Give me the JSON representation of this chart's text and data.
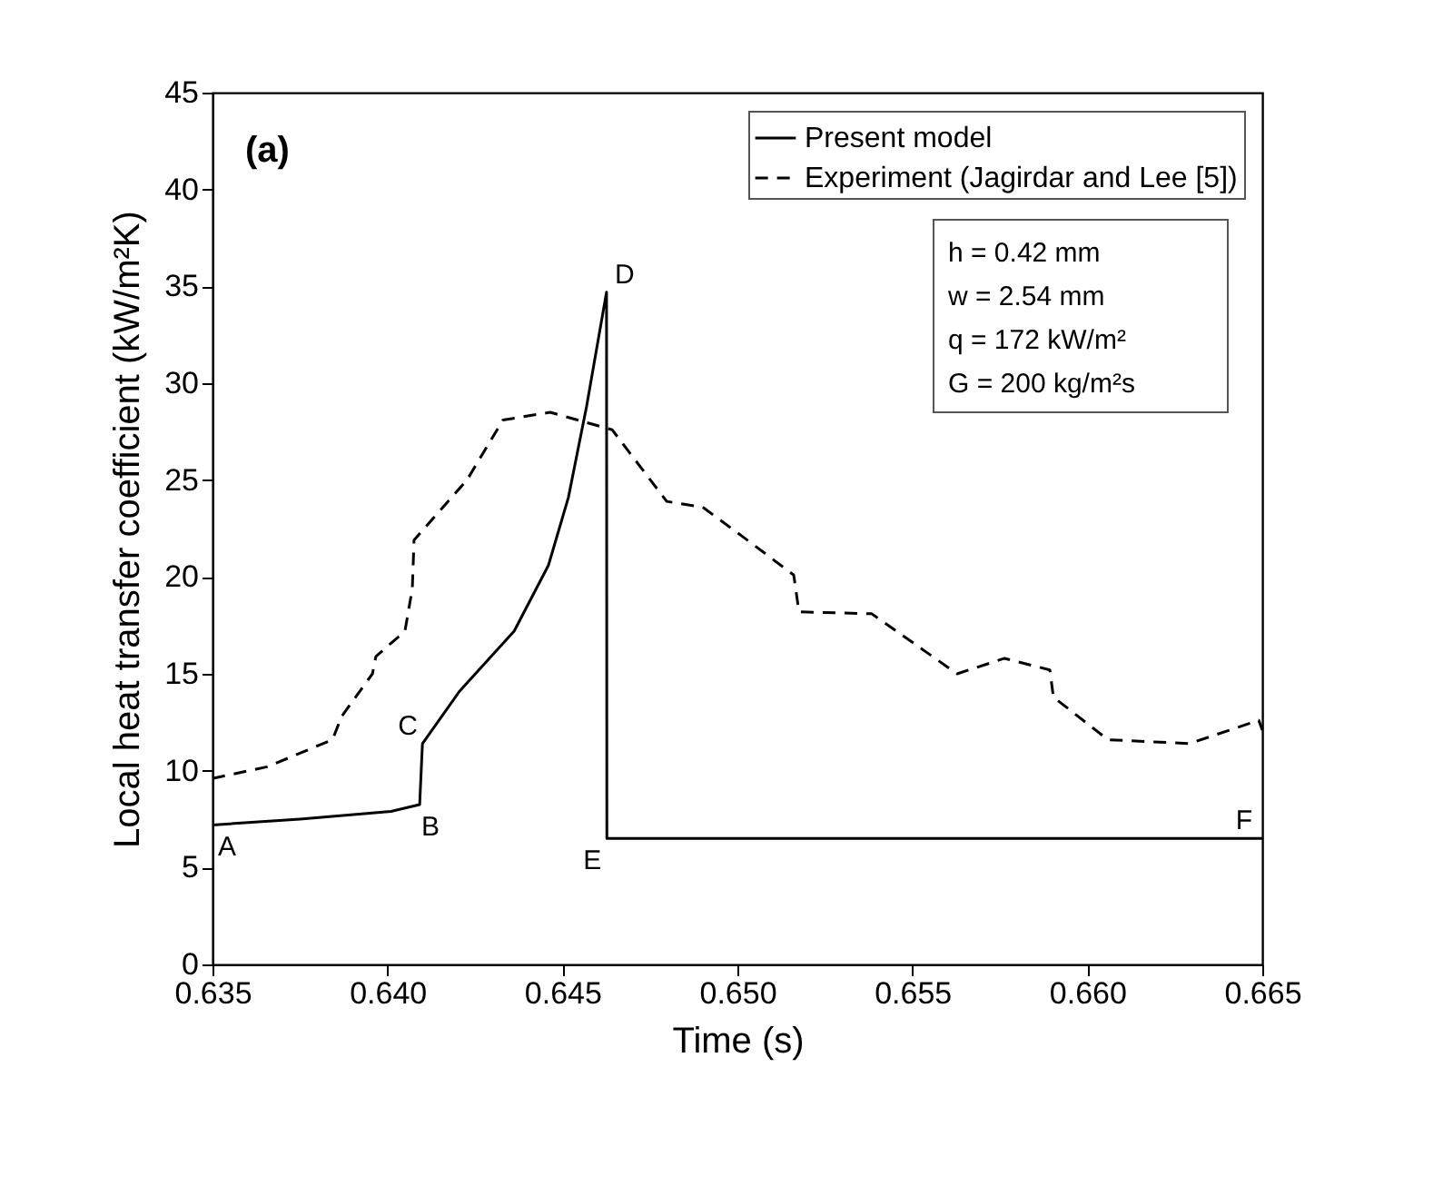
{
  "chart_data": {
    "type": "line",
    "xlabel": "Time (s)",
    "ylabel": "Local heat transfer coefficient (kW/m²K)",
    "xlim": [
      0.635,
      0.665
    ],
    "xticks": [
      {
        "value": 0.635,
        "label": "0.635"
      },
      {
        "value": 0.64,
        "label": "0.640"
      },
      {
        "value": 0.645,
        "label": "0.645"
      },
      {
        "value": 0.65,
        "label": "0.650"
      },
      {
        "value": 0.655,
        "label": "0.655"
      },
      {
        "value": 0.66,
        "label": "0.660"
      },
      {
        "value": 0.665,
        "label": "0.665"
      }
    ],
    "ylim": [
      0,
      45
    ],
    "yticks": [
      0,
      5,
      10,
      15,
      20,
      25,
      30,
      35,
      40,
      45
    ],
    "grid": false,
    "legend": "top right",
    "series": [
      {
        "name": "Present model",
        "color": "#000000",
        "line_style": "solid",
        "x": [
          0.635,
          0.6375,
          0.6401,
          0.64092,
          0.641,
          0.64206,
          0.64362,
          0.6446,
          0.64517,
          0.64569,
          0.64626,
          0.64627,
          0.665
        ],
        "values": [
          7.2,
          7.5,
          7.9,
          8.25,
          11.4,
          14.1,
          17.2,
          20.6,
          24.1,
          28.8,
          34.7,
          6.5,
          6.5
        ]
      },
      {
        "name": "Experiment (Jagirdar and Lee [5])",
        "color": "#000000",
        "line_style": "dashed",
        "x": [
          0.635,
          0.63656,
          0.63843,
          0.63869,
          0.63957,
          0.63967,
          0.6405,
          0.64071,
          0.64076,
          0.64227,
          0.6433,
          0.64465,
          0.64642,
          0.64798,
          0.64901,
          0.65021,
          0.65161,
          0.65176,
          0.65384,
          0.65628,
          0.65763,
          0.65893,
          0.65903,
          0.66059,
          0.66292,
          0.6649,
          0.665
        ],
        "values": [
          9.6,
          10.2,
          11.6,
          12.8,
          15.0,
          15.9,
          17.2,
          19.4,
          21.9,
          25.0,
          28.1,
          28.5,
          27.6,
          23.9,
          23.6,
          22.0,
          20.1,
          18.2,
          18.1,
          15.0,
          15.8,
          15.2,
          13.8,
          11.6,
          11.4,
          12.6,
          12.1
        ]
      }
    ],
    "annotations": [
      {
        "text": "A",
        "x": 0.635,
        "y": 7.2
      },
      {
        "text": "B",
        "x": 0.64092,
        "y": 8.25
      },
      {
        "text": "C",
        "x": 0.641,
        "y": 11.4
      },
      {
        "text": "D",
        "x": 0.64626,
        "y": 34.7
      },
      {
        "text": "E",
        "x": 0.64627,
        "y": 6.5
      },
      {
        "text": "F",
        "x": 0.665,
        "y": 6.5
      },
      "(a)",
      "h = 0.42 mm",
      "w = 2.54 mm",
      "q  = 172 kW/m²",
      "G = 200 kg/m²s"
    ]
  }
}
